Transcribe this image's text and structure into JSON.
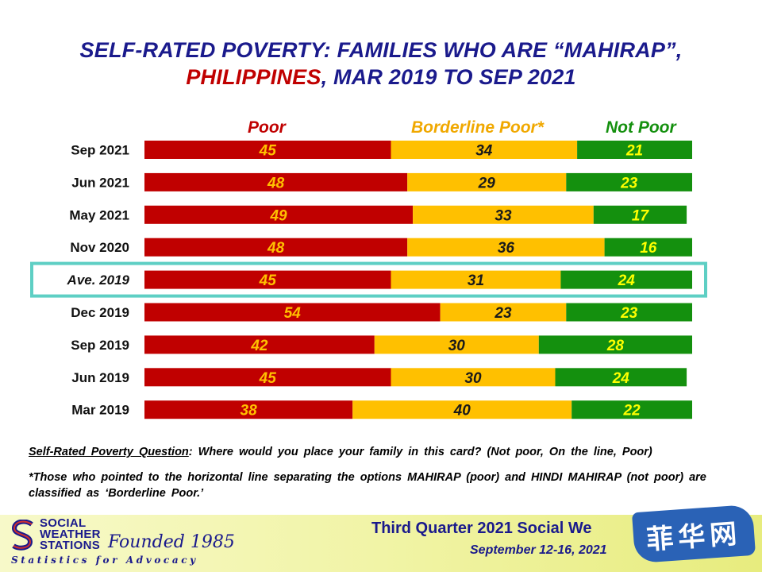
{
  "title": {
    "line1": "SELF-RATED POVERTY: FAMILIES WHO ARE “MAHIRAP”,",
    "line2_red": "PHILIPPINES",
    "line2_rest": ", MAR 2019 TO SEP 2021"
  },
  "colors": {
    "poor": "#c00000",
    "borderline": "#ffc000",
    "not_poor": "#14900e",
    "highlight": "#5ecfc4",
    "title_blue": "#1a1a8c",
    "label_poor": "#ffc000",
    "label_borderline": "#1a1a1a",
    "label_not_poor": "#ffff00"
  },
  "legend": {
    "poor": "Poor",
    "borderline": "Borderline Poor*",
    "not_poor": "Not Poor"
  },
  "chart_data": {
    "type": "bar",
    "orientation": "horizontal",
    "stacked": true,
    "categories": [
      "Sep 2021",
      "Jun 2021",
      "May 2021",
      "Nov 2020",
      "Ave. 2019",
      "Dec 2019",
      "Sep 2019",
      "Jun 2019",
      "Mar 2019"
    ],
    "highlighted_category": "Ave. 2019",
    "series": [
      {
        "name": "Poor",
        "values": [
          45,
          48,
          49,
          48,
          45,
          54,
          42,
          45,
          38
        ]
      },
      {
        "name": "Borderline Poor*",
        "values": [
          34,
          29,
          33,
          36,
          31,
          23,
          30,
          30,
          40
        ]
      },
      {
        "name": "Not Poor",
        "values": [
          21,
          23,
          17,
          16,
          24,
          23,
          28,
          24,
          22
        ]
      }
    ],
    "xlim": [
      0,
      100
    ],
    "legend_position": "top"
  },
  "notes": {
    "question_label": "Self-Rated Poverty Question",
    "question_text": ":  Where would you place your family in this card?  (Not poor, On the line, Poor)",
    "footnote": "*Those who pointed to the horizontal line separating the options MAHIRAP (poor) and HINDI MAHIRAP (not poor) are classified as ‘Borderline Poor.’"
  },
  "footer": {
    "logo_line1": "SOCIAL",
    "logo_line2": "WEATHER",
    "logo_line3": "STATIONS",
    "founded": "Founded 1985",
    "tagline": "Statistics for Advocacy",
    "survey_title": "Third Quarter 2021 Social We",
    "survey_date": "September 12-16, 2021",
    "watermark_text": "菲华网"
  }
}
